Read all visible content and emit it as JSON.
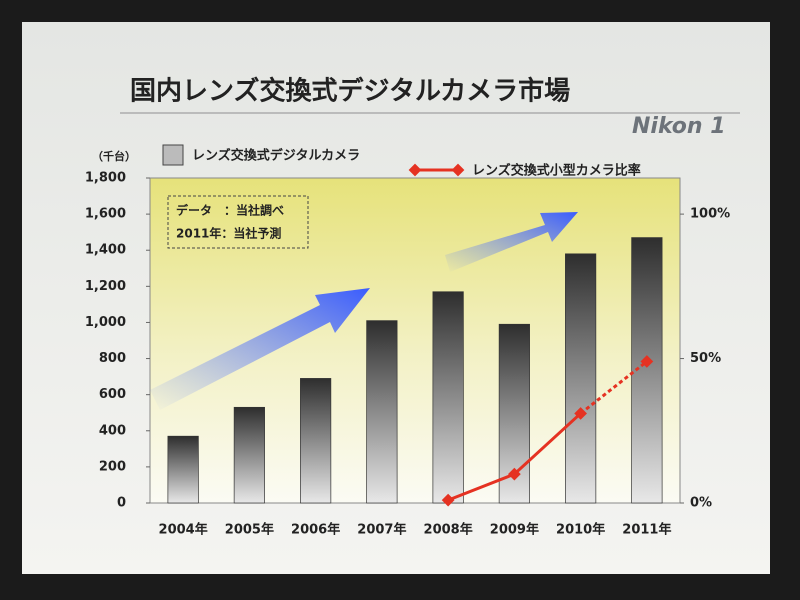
{
  "chart_data": {
    "type": "bar",
    "title": "国内レンズ交換式デジタルカメラ市場",
    "brand": "Nikon 1",
    "y_unit": "（千台）",
    "annotations": [
      "データ　：当社調べ",
      "2011年：当社予測"
    ],
    "categories": [
      "2004年",
      "2005年",
      "2006年",
      "2007年",
      "2008年",
      "2009年",
      "2010年",
      "2011年"
    ],
    "series": [
      {
        "name": "レンズ交換式デジタルカメラ",
        "type": "bar",
        "color": "#2e2e2e",
        "values": [
          370,
          530,
          690,
          1010,
          1170,
          990,
          1380,
          1470
        ]
      },
      {
        "name": "レンズ交換式小型カメラ比率",
        "type": "line",
        "color": "#e53222",
        "axis": "y2",
        "values": [
          null,
          null,
          null,
          null,
          1,
          10,
          31,
          49
        ]
      }
    ],
    "ylim": [
      0,
      1800
    ],
    "yticks": [
      0,
      200,
      400,
      600,
      800,
      {
        "value": 1000,
        "label": "1,000"
      },
      {
        "value": 1200,
        "label": "1,200"
      },
      {
        "value": 1400,
        "label": "1,400"
      },
      {
        "value": 1600,
        "label": "1,600"
      },
      {
        "value": 1800,
        "label": "1,800"
      }
    ],
    "y2lim": [
      0,
      112.5
    ],
    "y2ticks": [
      {
        "value": 0,
        "label": "0%"
      },
      {
        "value": 50,
        "label": "50%"
      },
      {
        "value": 100,
        "label": "100%"
      }
    ],
    "grid": false
  }
}
